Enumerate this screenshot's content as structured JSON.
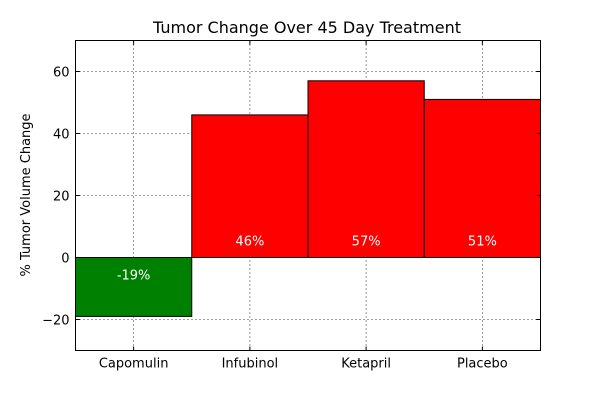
{
  "chart_data": {
    "type": "bar",
    "title": "Tumor Change Over 45 Day Treatment",
    "xlabel": "",
    "ylabel": "% Tumor Volume Change",
    "categories": [
      "Capomulin",
      "Infubinol",
      "Ketapril",
      "Placebo"
    ],
    "values": [
      -19,
      46,
      57,
      51
    ],
    "value_labels": [
      "-19%",
      "46%",
      "57%",
      "51%"
    ],
    "ylim": [
      -30,
      70
    ],
    "yticks": [
      -20,
      0,
      20,
      40,
      60
    ],
    "ytick_labels": [
      "−20",
      "0",
      "20",
      "40",
      "60"
    ],
    "grid": true,
    "colors": {
      "positive": "#ff0000",
      "negative": "#008000"
    }
  }
}
